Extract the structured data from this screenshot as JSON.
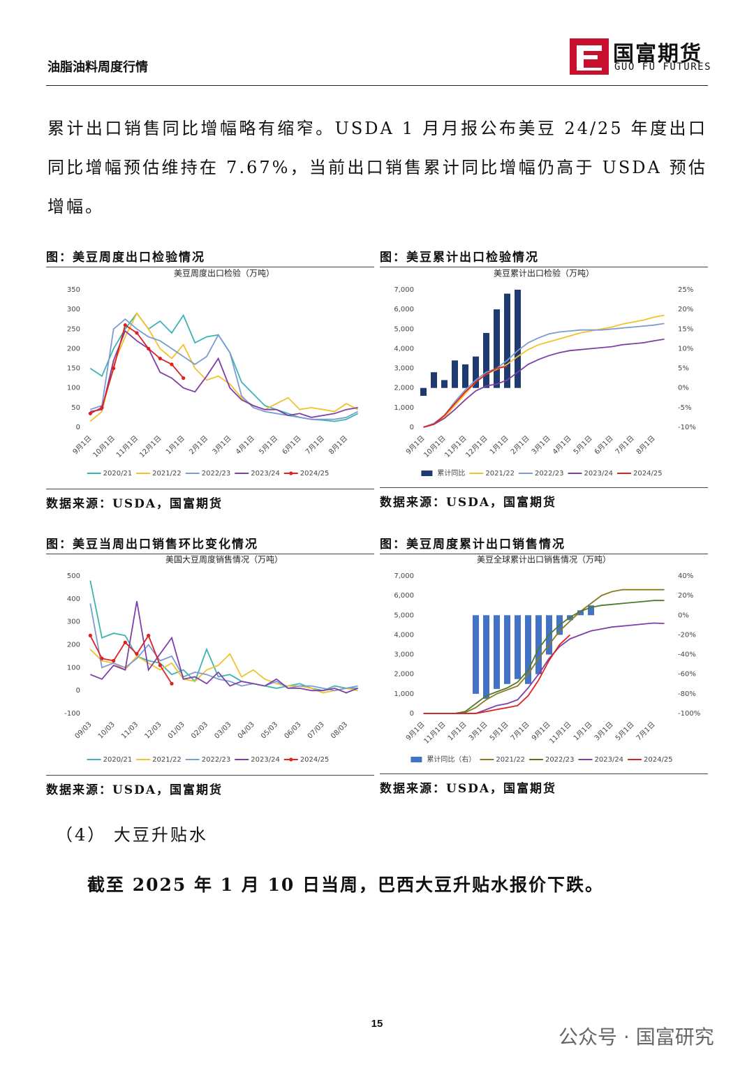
{
  "header": {
    "left": "油脂油料周度行情",
    "logo_cn": "国富期货",
    "logo_en": "GUO FU FUTURES"
  },
  "paragraph": "累计出口销售同比增幅略有缩窄。USDA 1 月月报公布美豆 24/25 年度出口同比增幅预估维持在 7.67%，当前出口销售累计同比增幅仍高于 USDA 预估增幅。",
  "figures": [
    {
      "caption": "图：美豆周度出口检验情况",
      "source": "数据来源：USDA，国富期货"
    },
    {
      "caption": "图：美豆累计出口检验情况",
      "source": "数据来源：USDA，国富期货"
    },
    {
      "caption": "图：美豆当周出口销售环比变化情况",
      "source": "数据来源：USDA，国富期货"
    },
    {
      "caption": "图：美豆周度累计出口销售情况",
      "source": "数据来源：USDA，国富期货"
    }
  ],
  "chart_data": [
    {
      "type": "line",
      "title": "美豆周度出口检验（万吨）",
      "categories": [
        "9月1日",
        null,
        "10月1日",
        null,
        "11月1日",
        null,
        "12月1日",
        null,
        "1月1日",
        null,
        "2月1日",
        null,
        "3月1日",
        null,
        "4月1日",
        null,
        "5月1日",
        null,
        "6月1日",
        null,
        "7月1日",
        null,
        "8月1日",
        null
      ],
      "ylim": [
        0,
        350
      ],
      "yticks": [
        0,
        50,
        100,
        150,
        200,
        250,
        300,
        350
      ],
      "series": [
        {
          "name": "2020/21",
          "color": "#3cb4b4",
          "values": [
            150,
            130,
            200,
            250,
            290,
            250,
            270,
            240,
            285,
            215,
            230,
            235,
            190,
            115,
            85,
            55,
            45,
            35,
            25,
            20,
            18,
            15,
            20,
            35
          ]
        },
        {
          "name": "2021/22",
          "color": "#f2c12e",
          "values": [
            15,
            40,
            160,
            230,
            290,
            250,
            200,
            175,
            210,
            150,
            120,
            130,
            110,
            75,
            55,
            45,
            60,
            75,
            45,
            50,
            45,
            40,
            60,
            45
          ]
        },
        {
          "name": "2022/23",
          "color": "#7b9bd1",
          "values": [
            45,
            55,
            250,
            275,
            250,
            230,
            220,
            200,
            180,
            160,
            180,
            235,
            190,
            80,
            50,
            40,
            35,
            30,
            25,
            20,
            20,
            20,
            25,
            40
          ]
        },
        {
          "name": "2023/24",
          "color": "#7e3fa8",
          "values": [
            40,
            45,
            170,
            245,
            220,
            200,
            140,
            125,
            100,
            90,
            130,
            175,
            100,
            70,
            55,
            45,
            45,
            30,
            35,
            25,
            30,
            35,
            45,
            50
          ]
        },
        {
          "name": "2024/25",
          "color": "#e02020",
          "markers": true,
          "values": [
            35,
            50,
            150,
            260,
            240,
            200,
            175,
            160,
            125,
            null,
            null,
            null,
            null,
            null,
            null,
            null,
            null,
            null,
            null,
            null,
            null,
            null,
            null,
            null
          ]
        }
      ]
    },
    {
      "type": "combo",
      "title": "美豆累计出口检验（万吨）",
      "categories": [
        "9月1日",
        null,
        "10月1日",
        null,
        "11月1日",
        null,
        "12月1日",
        null,
        "1月1日",
        null,
        "2月1日",
        null,
        "3月1日",
        null,
        "4月1日",
        null,
        "5月1日",
        null,
        "6月1日",
        null,
        "7月1日",
        null,
        "8月1日",
        null
      ],
      "ylim": [
        0,
        7000
      ],
      "yticks": [
        0,
        {
          "value": 1000,
          "label": "1,000"
        },
        {
          "value": 2000,
          "label": "2,000"
        },
        {
          "value": 3000,
          "label": "3,000"
        },
        {
          "value": 4000,
          "label": "4,000"
        },
        {
          "value": 5000,
          "label": "5,000"
        },
        {
          "value": 6000,
          "label": "6,000"
        },
        {
          "value": 7000,
          "label": "7,000"
        }
      ],
      "y2lim": [
        -10,
        25
      ],
      "y2ticks": [
        {
          "value": -10,
          "label": "-10%"
        },
        {
          "value": -5,
          "label": "-5%"
        },
        {
          "value": 0,
          "label": "0%"
        },
        {
          "value": 5,
          "label": "5%"
        },
        {
          "value": 10,
          "label": "10%"
        },
        {
          "value": 15,
          "label": "15%"
        },
        {
          "value": 20,
          "label": "20%"
        },
        {
          "value": 25,
          "label": "25%"
        }
      ],
      "series": [
        {
          "name": "累计同比",
          "type": "bar",
          "axis": "y2",
          "color": "#1f3a6e",
          "values": [
            -2,
            4,
            2,
            7,
            6,
            8,
            14,
            20,
            24,
            25,
            null,
            null,
            null,
            null,
            null,
            null,
            null,
            null,
            null,
            null,
            null,
            null,
            null,
            null
          ]
        },
        {
          "name": "2021/22",
          "color": "#f2c12e",
          "values": [
            0,
            150,
            500,
            1100,
            1700,
            2300,
            2700,
            2950,
            3200,
            3600,
            3950,
            4200,
            4350,
            4500,
            4650,
            4800,
            4900,
            5000,
            5100,
            5250,
            5350,
            5450,
            5600,
            5700
          ]
        },
        {
          "name": "2022/23",
          "color": "#7b9bd1",
          "values": [
            0,
            200,
            600,
            1300,
            1900,
            2400,
            2800,
            3000,
            3400,
            3900,
            4300,
            4550,
            4750,
            4850,
            4900,
            4950,
            4950,
            4950,
            5000,
            5050,
            5100,
            5150,
            5200,
            5280
          ]
        },
        {
          "name": "2023/24",
          "color": "#7e3fa8",
          "values": [
            0,
            150,
            450,
            900,
            1400,
            1850,
            2100,
            2200,
            2400,
            2800,
            3200,
            3450,
            3650,
            3800,
            3900,
            3950,
            4000,
            4050,
            4100,
            4200,
            4250,
            4300,
            4400,
            4480
          ]
        },
        {
          "name": "2024/25",
          "color": "#e02020",
          "values": [
            0,
            150,
            600,
            1200,
            1800,
            2300,
            2700,
            3000,
            3100,
            null,
            null,
            null,
            null,
            null,
            null,
            null,
            null,
            null,
            null,
            null,
            null,
            null,
            null,
            null
          ]
        }
      ]
    },
    {
      "type": "line",
      "title": "美国大豆周度销售情况（万吨）",
      "categories": [
        "09/03",
        null,
        "10/03",
        null,
        "11/03",
        null,
        "12/03",
        null,
        "01/03",
        null,
        "02/03",
        null,
        "03/03",
        null,
        "04/03",
        null,
        "05/03",
        null,
        "06/03",
        null,
        "07/03",
        null,
        "08/03",
        null
      ],
      "ylim": [
        -100,
        500
      ],
      "yticks": [
        -100,
        0,
        100,
        200,
        300,
        400,
        500
      ],
      "series": [
        {
          "name": "2020/21",
          "color": "#3cb4b4",
          "values": [
            480,
            230,
            250,
            240,
            150,
            130,
            120,
            70,
            90,
            40,
            180,
            60,
            70,
            40,
            30,
            20,
            10,
            20,
            30,
            10,
            0,
            20,
            10,
            10
          ]
        },
        {
          "name": "2021/22",
          "color": "#f2c12e",
          "values": [
            180,
            130,
            120,
            90,
            150,
            120,
            90,
            120,
            50,
            40,
            90,
            110,
            160,
            60,
            90,
            50,
            30,
            20,
            20,
            10,
            -10,
            0,
            10,
            0
          ]
        },
        {
          "name": "2022/23",
          "color": "#7b9bd1",
          "values": [
            380,
            100,
            120,
            100,
            140,
            200,
            130,
            150,
            60,
            80,
            70,
            50,
            40,
            20,
            30,
            20,
            40,
            10,
            20,
            20,
            10,
            0,
            10,
            20
          ]
        },
        {
          "name": "2023/24",
          "color": "#7e3fa8",
          "values": [
            70,
            50,
            110,
            90,
            390,
            90,
            160,
            230,
            50,
            60,
            30,
            80,
            20,
            40,
            30,
            20,
            50,
            10,
            10,
            0,
            0,
            10,
            -10,
            10
          ]
        },
        {
          "name": "2024/25",
          "color": "#e02020",
          "markers": true,
          "values": [
            240,
            140,
            130,
            210,
            160,
            240,
            110,
            30,
            null,
            null,
            null,
            null,
            null,
            null,
            null,
            null,
            null,
            null,
            null,
            null,
            null,
            null,
            null,
            null
          ]
        }
      ]
    },
    {
      "type": "combo",
      "title": "美豆全球累计出口销售情况（万吨）",
      "categories": [
        "9月1日",
        null,
        "11月1日",
        null,
        "1月1日",
        null,
        "3月1日",
        null,
        "5月1日",
        null,
        "7月1日",
        null,
        "9月1日",
        null,
        "11月1日",
        null,
        "1月1日",
        null,
        "3月1日",
        null,
        "5月1日",
        null,
        "7月1日",
        null
      ],
      "ylim": [
        0,
        7000
      ],
      "yticks": [
        0,
        {
          "value": 1000,
          "label": "1,000"
        },
        {
          "value": 2000,
          "label": "2,000"
        },
        {
          "value": 3000,
          "label": "3,000"
        },
        {
          "value": 4000,
          "label": "4,000"
        },
        {
          "value": 5000,
          "label": "5,000"
        },
        {
          "value": 6000,
          "label": "6,000"
        },
        {
          "value": 7000,
          "label": "7,000"
        }
      ],
      "y2lim": [
        -100,
        40
      ],
      "y2ticks": [
        {
          "value": -100,
          "label": "-100%"
        },
        {
          "value": -80,
          "label": "-80%"
        },
        {
          "value": -60,
          "label": "-60%"
        },
        {
          "value": -40,
          "label": "-40%"
        },
        {
          "value": -20,
          "label": "-20%"
        },
        {
          "value": 0,
          "label": "0%"
        },
        {
          "value": 20,
          "label": "20%"
        },
        {
          "value": 40,
          "label": "40%"
        }
      ],
      "series": [
        {
          "name": "累计同比（右）",
          "type": "bar",
          "axis": "y2",
          "color": "#4472c4",
          "values": [
            null,
            null,
            null,
            null,
            null,
            -80,
            -85,
            -75,
            -70,
            -65,
            -70,
            -60,
            -40,
            -20,
            -5,
            5,
            10,
            null,
            null,
            null,
            null,
            null,
            null,
            null
          ]
        },
        {
          "name": "2021/22",
          "color": "#8b7a1e",
          "values": [
            0,
            0,
            0,
            0,
            50,
            300,
            700,
            1000,
            1200,
            1400,
            2000,
            2800,
            3500,
            4200,
            4700,
            5200,
            5600,
            6000,
            6200,
            6300,
            6300,
            6300,
            6300,
            6300
          ]
        },
        {
          "name": "2022/23",
          "color": "#4e7a2a",
          "values": [
            0,
            0,
            0,
            0,
            100,
            500,
            900,
            1100,
            1300,
            1600,
            2200,
            3300,
            4000,
            4500,
            4900,
            5200,
            5400,
            5500,
            5550,
            5600,
            5650,
            5700,
            5750,
            5750
          ]
        },
        {
          "name": "2023/24",
          "color": "#7e3fa8",
          "values": [
            0,
            0,
            0,
            0,
            0,
            0,
            200,
            400,
            500,
            700,
            1300,
            2000,
            2800,
            3400,
            3800,
            4000,
            4200,
            4300,
            4400,
            4450,
            4500,
            4550,
            4600,
            4580
          ]
        },
        {
          "name": "2024/25",
          "color": "#e02020",
          "values": [
            0,
            0,
            0,
            0,
            0,
            0,
            100,
            200,
            300,
            400,
            900,
            1700,
            2700,
            3500,
            4000,
            null,
            null,
            null,
            null,
            null,
            null,
            null,
            null,
            null
          ]
        }
      ]
    }
  ],
  "section": "（4） 大豆升贴水",
  "final": "截至 2025 年 1 月 10 日当周，巴西大豆升贴水报价下跌。",
  "page_number": "15",
  "watermark": "公众号 · 国富研究"
}
